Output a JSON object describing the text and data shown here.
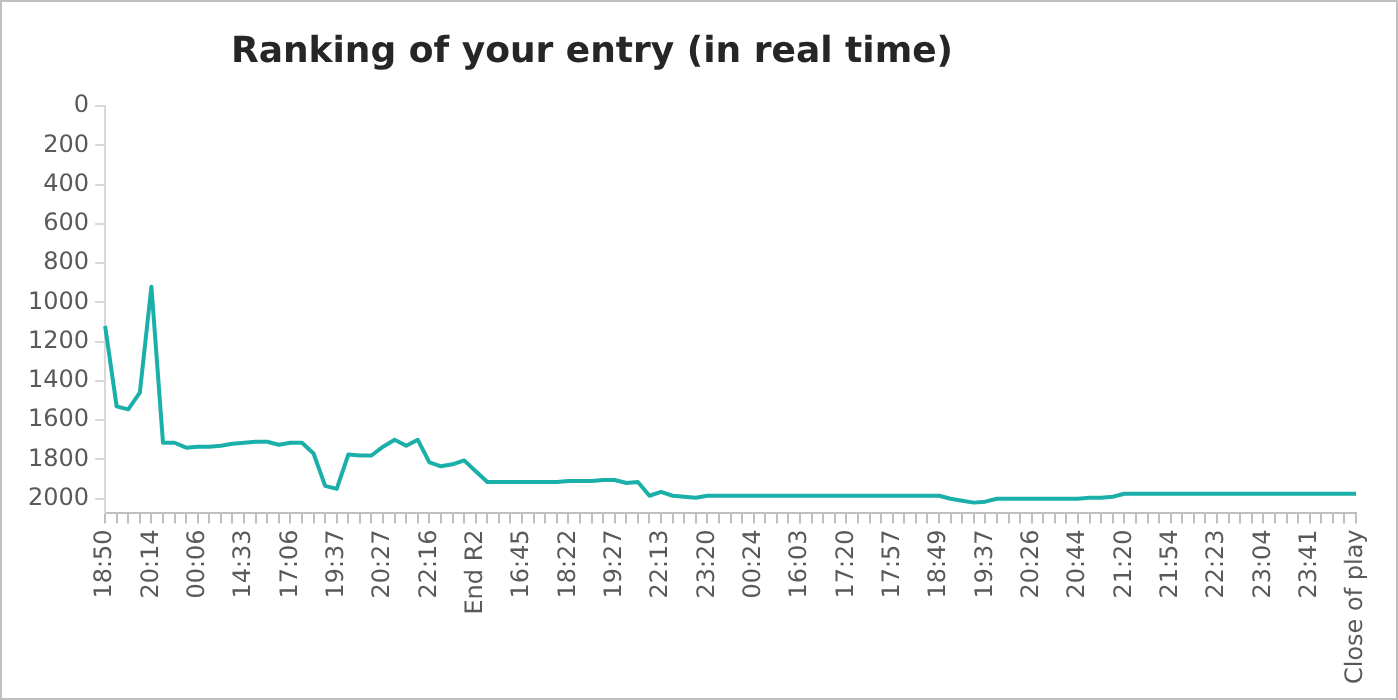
{
  "chart_data": {
    "type": "line",
    "title": "Ranking of your entry (in real time)",
    "categories": [
      "18:50",
      null,
      null,
      null,
      "20:14",
      null,
      null,
      null,
      "00:06",
      null,
      null,
      null,
      "14:33",
      null,
      null,
      null,
      "17:06",
      null,
      null,
      null,
      "19:37",
      null,
      null,
      null,
      "20:27",
      null,
      null,
      null,
      "22:16",
      null,
      null,
      null,
      "End R2",
      null,
      null,
      null,
      "16:45",
      null,
      null,
      null,
      "18:22",
      null,
      null,
      null,
      "19:27",
      null,
      null,
      null,
      "22:13",
      null,
      null,
      null,
      "23:20",
      null,
      null,
      null,
      "00:24",
      null,
      null,
      null,
      "16:03",
      null,
      null,
      null,
      "17:20",
      null,
      null,
      null,
      "17:57",
      null,
      null,
      null,
      "18:49",
      null,
      null,
      null,
      "19:37",
      null,
      null,
      null,
      "20:26",
      null,
      null,
      null,
      "20:44",
      null,
      null,
      null,
      "21:20",
      null,
      null,
      null,
      "21:54",
      null,
      null,
      null,
      "22:23",
      null,
      null,
      null,
      "23:04",
      null,
      null,
      null,
      "23:41",
      null,
      null,
      null,
      "Close of play"
    ],
    "series": [
      {
        "color": "#1aafa8",
        "values": [
          1120,
          1530,
          1545,
          1460,
          920,
          1715,
          1715,
          1740,
          1735,
          1735,
          1730,
          1720,
          1715,
          1710,
          1710,
          1725,
          1715,
          1715,
          1770,
          1935,
          1950,
          1775,
          1780,
          1780,
          1735,
          1700,
          1730,
          1700,
          1815,
          1835,
          1825,
          1805,
          1860,
          1915,
          1915,
          1915,
          1915,
          1915,
          1915,
          1915,
          1910,
          1910,
          1910,
          1905,
          1905,
          1920,
          1915,
          1985,
          1965,
          1985,
          1990,
          1995,
          1985,
          1985,
          1985,
          1985,
          1985,
          1985,
          1985,
          1985,
          1985,
          1985,
          1985,
          1985,
          1985,
          1985,
          1985,
          1985,
          1985,
          1985,
          1985,
          1985,
          1985,
          2000,
          2010,
          2020,
          2015,
          2000,
          2000,
          2000,
          2000,
          2000,
          2000,
          2000,
          2000,
          1995,
          1995,
          1990,
          1975,
          1975,
          1975,
          1975,
          1975,
          1975,
          1975,
          1975,
          1975,
          1975,
          1975,
          1975,
          1975,
          1975,
          1975,
          1975,
          1975,
          1975,
          1975,
          1975,
          1975
        ]
      }
    ],
    "ylim": [
      2075,
      0
    ],
    "yticks": [
      0,
      200,
      400,
      600,
      800,
      1000,
      1200,
      1400,
      1600,
      1800,
      2000
    ],
    "grid": false,
    "legend": false,
    "marker": "none",
    "line_style": "solid"
  }
}
